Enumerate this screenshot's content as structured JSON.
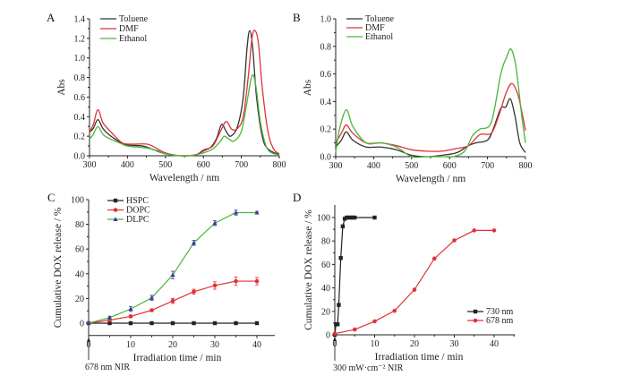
{
  "chart_data": [
    {
      "id": "A",
      "panel_label": "A",
      "type": "line",
      "xlabel": "Wavelength / nm",
      "ylabel": "Abs",
      "xlim": [
        300,
        800
      ],
      "ylim": [
        0,
        1.4
      ],
      "xticks": [
        300,
        400,
        500,
        600,
        700,
        800
      ],
      "yticks": [
        "0.0",
        "0.2",
        "0.4",
        "0.6",
        "0.8",
        "1.0",
        "1.2",
        "1.4"
      ],
      "legend": "top-left",
      "series": [
        {
          "name": "Toluene",
          "color": "#333333",
          "x": [
            300,
            310,
            322,
            335,
            350,
            380,
            400,
            440,
            470,
            500,
            540,
            580,
            600,
            620,
            635,
            648,
            660,
            672,
            690,
            705,
            715,
            722,
            730,
            740,
            755,
            770,
            800
          ],
          "y": [
            0.24,
            0.28,
            0.37,
            0.28,
            0.22,
            0.14,
            0.11,
            0.1,
            0.06,
            0.02,
            0.0,
            0.01,
            0.05,
            0.09,
            0.18,
            0.32,
            0.25,
            0.2,
            0.3,
            0.6,
            1.1,
            1.28,
            1.1,
            0.6,
            0.2,
            0.07,
            0.01
          ]
        },
        {
          "name": "DMF",
          "color": "#e0323a",
          "x": [
            300,
            310,
            322,
            335,
            350,
            380,
            400,
            450,
            470,
            500,
            540,
            580,
            600,
            625,
            645,
            660,
            675,
            690,
            705,
            718,
            728,
            736,
            745,
            755,
            770,
            785,
            800
          ],
          "y": [
            0.24,
            0.32,
            0.47,
            0.34,
            0.27,
            0.15,
            0.12,
            0.12,
            0.09,
            0.03,
            0.0,
            0.01,
            0.06,
            0.1,
            0.25,
            0.35,
            0.27,
            0.28,
            0.4,
            0.8,
            1.2,
            1.28,
            1.15,
            0.7,
            0.25,
            0.07,
            0.02
          ]
        },
        {
          "name": "Ethanol",
          "color": "#4cb43c",
          "x": [
            300,
            310,
            322,
            335,
            350,
            380,
            400,
            450,
            480,
            500,
            540,
            580,
            600,
            625,
            645,
            655,
            668,
            680,
            700,
            715,
            728,
            738,
            750,
            765,
            780,
            800
          ],
          "y": [
            0.17,
            0.22,
            0.3,
            0.22,
            0.18,
            0.13,
            0.1,
            0.08,
            0.05,
            0.02,
            0.0,
            0.01,
            0.03,
            0.07,
            0.15,
            0.2,
            0.17,
            0.15,
            0.25,
            0.55,
            0.82,
            0.72,
            0.35,
            0.1,
            0.03,
            0.01
          ]
        }
      ]
    },
    {
      "id": "B",
      "panel_label": "B",
      "type": "line",
      "xlabel": "Wavelength / nm",
      "ylabel": "Abs",
      "xlim": [
        300,
        800
      ],
      "ylim": [
        0,
        1.0
      ],
      "xticks": [
        300,
        400,
        500,
        600,
        700,
        800
      ],
      "yticks": [
        "0.0",
        "0.2",
        "0.4",
        "0.6",
        "0.8",
        "1.0"
      ],
      "legend": "top-left",
      "series": [
        {
          "name": "Toluene",
          "color": "#333333",
          "x": [
            300,
            315,
            328,
            345,
            380,
            420,
            460,
            500,
            540,
            580,
            620,
            650,
            670,
            700,
            715,
            735,
            748,
            760,
            772,
            785,
            800
          ],
          "y": [
            0.07,
            0.12,
            0.18,
            0.12,
            0.07,
            0.07,
            0.05,
            0.01,
            0.0,
            0.01,
            0.03,
            0.08,
            0.1,
            0.12,
            0.2,
            0.35,
            0.36,
            0.42,
            0.3,
            0.1,
            0.03
          ]
        },
        {
          "name": "DMF",
          "color": "#e0323a",
          "x": [
            300,
            315,
            328,
            345,
            380,
            420,
            460,
            500,
            540,
            580,
            620,
            650,
            680,
            710,
            730,
            750,
            765,
            780,
            790,
            800
          ],
          "y": [
            0.1,
            0.17,
            0.23,
            0.17,
            0.1,
            0.1,
            0.08,
            0.05,
            0.04,
            0.04,
            0.06,
            0.08,
            0.16,
            0.17,
            0.3,
            0.47,
            0.53,
            0.45,
            0.33,
            0.19
          ]
        },
        {
          "name": "Ethanol",
          "color": "#4cb43c",
          "x": [
            300,
            310,
            328,
            345,
            380,
            420,
            460,
            500,
            540,
            580,
            610,
            640,
            660,
            680,
            710,
            735,
            750,
            762,
            775,
            790,
            800
          ],
          "y": [
            0.03,
            0.2,
            0.34,
            0.22,
            0.1,
            0.1,
            0.07,
            0.0,
            0.0,
            0.0,
            0.0,
            0.04,
            0.15,
            0.2,
            0.25,
            0.6,
            0.72,
            0.78,
            0.65,
            0.3,
            0.1
          ]
        }
      ]
    },
    {
      "id": "C",
      "panel_label": "C",
      "type": "line",
      "xlabel": "Irradiation time / min",
      "ylabel": "Cumulative DOX release / %",
      "xlim": [
        0,
        45
      ],
      "ylim": [
        -10,
        100
      ],
      "xticks": [
        0,
        10,
        20,
        30,
        40
      ],
      "yticks": [
        "0",
        "20",
        "40",
        "60",
        "80",
        "100"
      ],
      "legend": "top-left",
      "annotation": "678 nm NIR",
      "series": [
        {
          "name": "HSPC",
          "color": "#222222",
          "marker": "square",
          "x": [
            0,
            5,
            10,
            15,
            20,
            25,
            30,
            35,
            40
          ],
          "y": [
            0,
            0,
            0,
            0,
            0,
            0,
            0,
            0,
            0
          ],
          "err": [
            0,
            0,
            0,
            0,
            0,
            0,
            0,
            0,
            0
          ]
        },
        {
          "name": "DOPC",
          "color": "#e0323a",
          "marker": "circle",
          "x": [
            0,
            5,
            10,
            15,
            20,
            25,
            30,
            35,
            40
          ],
          "y": [
            0,
            2.5,
            5.5,
            10.5,
            18,
            25.5,
            30.5,
            34,
            34
          ],
          "err": [
            0,
            0.8,
            1,
            1,
            2,
            2,
            3,
            3.5,
            3
          ]
        },
        {
          "name": "DLPC",
          "color": "#4cb43c",
          "marker": "triangle",
          "marker_color": "#3a3aa0",
          "x": [
            0,
            5,
            10,
            15,
            20,
            25,
            30,
            35,
            40
          ],
          "y": [
            0,
            4.5,
            11.5,
            20.5,
            39,
            65,
            81,
            89.5,
            89.5
          ],
          "err": [
            0,
            1,
            2,
            2,
            3,
            2,
            2,
            2,
            1
          ]
        }
      ]
    },
    {
      "id": "D",
      "panel_label": "D",
      "type": "line",
      "xlabel": "Irradiation time / min",
      "ylabel": "Cumulative DOX release / %",
      "xlim": [
        0,
        45
      ],
      "ylim": [
        0,
        110
      ],
      "xticks": [
        0,
        10,
        20,
        30,
        40
      ],
      "yticks": [
        "0",
        "20",
        "40",
        "60",
        "80",
        "100"
      ],
      "legend": "bottom-right",
      "annotation": "300 mW·cm⁻² NIR",
      "series": [
        {
          "name": "730 nm",
          "color": "#222222",
          "marker": "square",
          "x": [
            0,
            0.3,
            0.7,
            1,
            1.5,
            2,
            2.5,
            3,
            3.5,
            4,
            4.5,
            5,
            10
          ],
          "y": [
            0,
            9,
            9,
            25.5,
            65.5,
            92.5,
            99,
            100,
            100,
            100,
            100,
            100,
            100
          ]
        },
        {
          "name": "678 nm",
          "color": "#e0323a",
          "marker": "circle",
          "x": [
            0,
            5,
            10,
            15,
            20,
            25,
            30,
            35,
            40
          ],
          "y": [
            1,
            4.5,
            11.5,
            20.5,
            38.5,
            65,
            80.5,
            89,
            89
          ]
        }
      ]
    }
  ]
}
